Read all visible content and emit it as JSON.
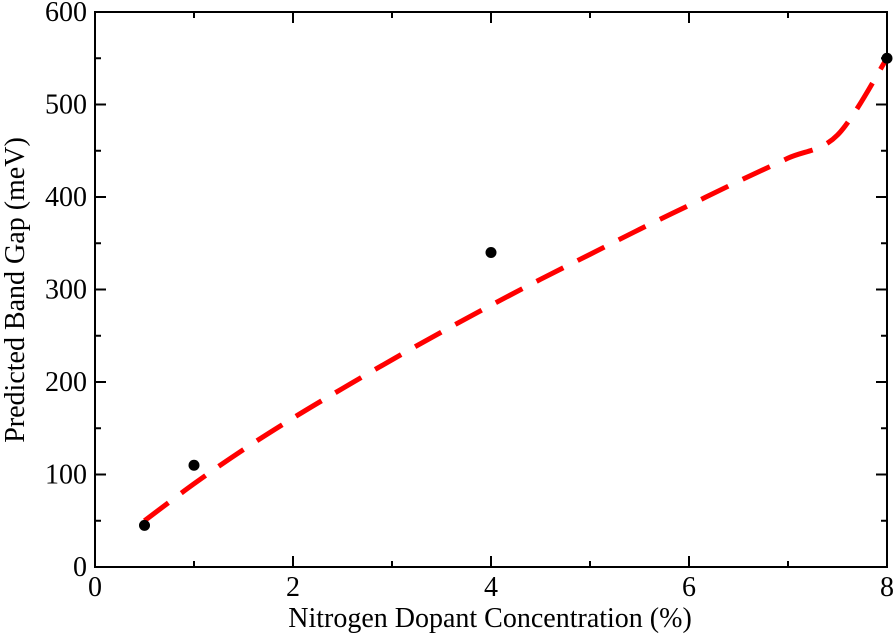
{
  "chart_data": {
    "type": "scatter",
    "title": "",
    "xlabel": "Nitrogen Dopant Concentration (%)",
    "ylabel": "Predicted Band Gap (meV)",
    "xlim": [
      0,
      8
    ],
    "ylim": [
      0,
      600
    ],
    "x_major_ticks": [
      0,
      2,
      4,
      6,
      8
    ],
    "x_minor_ticks": [
      1,
      3,
      5,
      7
    ],
    "y_major_ticks": [
      0,
      100,
      200,
      300,
      400,
      500,
      600
    ],
    "y_minor_ticks": [
      50,
      150,
      250,
      350,
      450,
      550
    ],
    "x_tick_labels": [
      "0",
      "2",
      "4",
      "6",
      "8"
    ],
    "y_tick_labels": [
      "0",
      "100",
      "200",
      "300",
      "400",
      "500",
      "600"
    ],
    "grid": false,
    "legend": "none",
    "series": [
      {
        "kind": "scatter",
        "color": "#000000",
        "x": [
          0.5,
          1.0,
          4.0,
          8.0
        ],
        "y": [
          45,
          110,
          340,
          550
        ]
      },
      {
        "kind": "line",
        "style": "dashed",
        "color": "#ff0000",
        "x": [
          0.5,
          1.0,
          1.5,
          2.0,
          2.5,
          3.0,
          3.5,
          4.0,
          4.5,
          5.0,
          5.5,
          6.0,
          6.5,
          7.0,
          7.5,
          8.0
        ],
        "y": [
          50,
          90,
          127,
          161,
          193,
          224,
          254,
          283,
          311,
          338,
          365,
          391,
          417,
          442,
          467,
          550
        ]
      }
    ]
  }
}
